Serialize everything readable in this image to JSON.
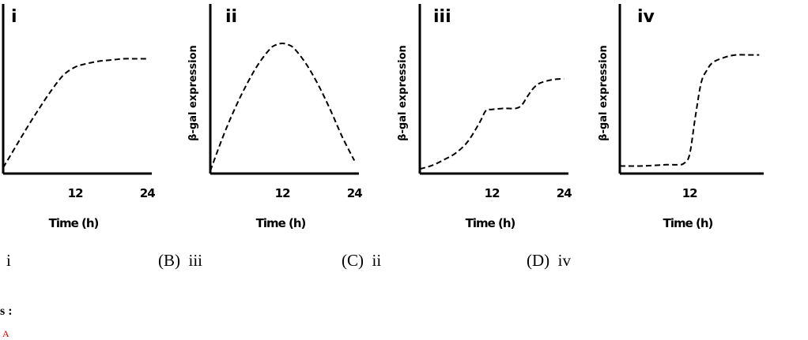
{
  "chart_data": [
    {
      "type": "line",
      "panel": "i",
      "ylabel": "",
      "xlabel": "Time (h)",
      "xticks": [
        12,
        24
      ],
      "xlim": [
        0,
        24.5
      ],
      "ylim": [
        0,
        100
      ],
      "series": [
        {
          "x": [
            0,
            2,
            4,
            6,
            8,
            10,
            12,
            14,
            16,
            18,
            20,
            22,
            24
          ],
          "values": [
            5,
            22,
            39,
            55,
            70,
            83,
            90,
            93,
            95,
            96,
            97,
            97,
            97
          ]
        }
      ]
    },
    {
      "type": "line",
      "panel": "ii",
      "ylabel": "β-gal expression",
      "xlabel": "Time (h)",
      "xticks": [
        12,
        24
      ],
      "xlim": [
        0,
        24.5
      ],
      "ylim": [
        0,
        100
      ],
      "series": [
        {
          "x": [
            0,
            2,
            4,
            6,
            8,
            10,
            11,
            12,
            13,
            14,
            16,
            18,
            20,
            22,
            24
          ],
          "values": [
            2,
            27,
            49,
            68,
            84,
            96,
            99,
            100,
            99,
            96,
            84,
            68,
            49,
            28,
            10
          ]
        }
      ]
    },
    {
      "type": "line",
      "panel": "iii",
      "ylabel": "β-gal expression",
      "xlabel": "Time (h)",
      "xticks": [
        12,
        24
      ],
      "xlim": [
        0,
        24.5
      ],
      "ylim": [
        0,
        100
      ],
      "series": [
        {
          "x": [
            0,
            2,
            4,
            6,
            8,
            10,
            11,
            12,
            14,
            16,
            17,
            18,
            19,
            20,
            22,
            24
          ],
          "values": [
            4,
            7,
            12,
            18,
            28,
            45,
            55,
            56,
            57,
            57,
            60,
            68,
            75,
            79,
            82,
            83
          ]
        }
      ]
    },
    {
      "type": "line",
      "panel": "iv",
      "ylabel": "β-gal expression",
      "xlabel": "Time (h)",
      "xticks": [
        12
      ],
      "xlim": [
        0,
        24.5
      ],
      "ylim": [
        0,
        100
      ],
      "series": [
        {
          "x": [
            0,
            4,
            8,
            10,
            11,
            12,
            13,
            14,
            15,
            16,
            18,
            20,
            22,
            24
          ],
          "values": [
            6,
            6,
            7,
            7,
            8,
            15,
            45,
            72,
            82,
            88,
            92,
            94,
            94,
            94
          ]
        }
      ]
    }
  ],
  "options": {
    "a": "i",
    "b": "(B)  iii",
    "c": "(C)  ii",
    "d": "(D)  iv"
  },
  "answers": {
    "label": "s :",
    "value": "A"
  }
}
